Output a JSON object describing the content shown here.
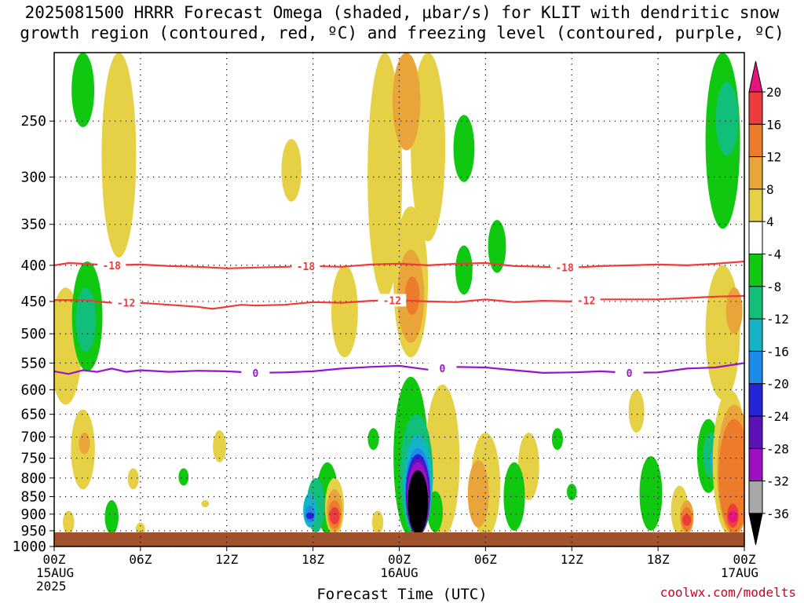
{
  "chart_data": {
    "type": "heatmap",
    "title_line1": "2025081500 HRRR Forecast Omega (shaded, μbar/s) for KLIT with dendritic snow",
    "title_line2": "growth region (contoured, red, ºC) and freezing level (contoured, purple, ºC)",
    "xlabel": "Forecast Time (UTC)",
    "watermark": "coolwx.com/modelts",
    "x_range_hours": [
      0,
      48
    ],
    "y_range_hpa": [
      200,
      1000
    ],
    "y_scale": "pressure",
    "grid": true,
    "y_ticks": [
      "250",
      "300",
      "350",
      "400",
      "450",
      "500",
      "550",
      "600",
      "650",
      "700",
      "750",
      "800",
      "850",
      "900",
      "950",
      "1000"
    ],
    "x_ticks": [
      {
        "hour": 0,
        "lines": [
          "00Z",
          "15AUG",
          "2025"
        ]
      },
      {
        "hour": 6,
        "lines": [
          "06Z"
        ]
      },
      {
        "hour": 12,
        "lines": [
          "12Z"
        ]
      },
      {
        "hour": 18,
        "lines": [
          "18Z"
        ]
      },
      {
        "hour": 24,
        "lines": [
          "00Z",
          "16AUG"
        ]
      },
      {
        "hour": 30,
        "lines": [
          "06Z"
        ]
      },
      {
        "hour": 36,
        "lines": [
          "12Z"
        ]
      },
      {
        "hour": 42,
        "lines": [
          "18Z"
        ]
      },
      {
        "hour": 48,
        "lines": [
          "00Z",
          "17AUG"
        ]
      }
    ],
    "colorbar": {
      "labels": [
        "20",
        "16",
        "12",
        "8",
        "4",
        "-4",
        "-8",
        "-12",
        "-16",
        "-20",
        "-24",
        "-28",
        "-32",
        "-36"
      ],
      "colors": [
        "#e4157d",
        "#ee3b3b",
        "#ec7c2b",
        "#e9a43a",
        "#e6d146",
        "#ffffff",
        "#10c810",
        "#12bf7a",
        "#14b4c6",
        "#1d8be9",
        "#2424d8",
        "#5b12b8",
        "#9b10c4",
        "#a8a8a8",
        "#000000"
      ]
    },
    "isotherms": [
      {
        "value": -18,
        "color": "#ee3b3b",
        "label": "-18",
        "points": [
          [
            0,
            400
          ],
          [
            1,
            397
          ],
          [
            2,
            398
          ],
          [
            4,
            400
          ],
          [
            6,
            399
          ],
          [
            8,
            401
          ],
          [
            10,
            402
          ],
          [
            12,
            404
          ],
          [
            14,
            403
          ],
          [
            16,
            402
          ],
          [
            18,
            401
          ],
          [
            20,
            402
          ],
          [
            22,
            399
          ],
          [
            24,
            398
          ],
          [
            26,
            400
          ],
          [
            28,
            398
          ],
          [
            30,
            397
          ],
          [
            32,
            401
          ],
          [
            34,
            402
          ],
          [
            36,
            403
          ],
          [
            38,
            401
          ],
          [
            40,
            400
          ],
          [
            42,
            399
          ],
          [
            44,
            400
          ],
          [
            46,
            398
          ],
          [
            48,
            395
          ]
        ],
        "label_hours": [
          4,
          17.5,
          35.5
        ]
      },
      {
        "value": -12,
        "color": "#ee3b3b",
        "label": "-12",
        "points": [
          [
            0,
            448
          ],
          [
            2,
            448
          ],
          [
            4,
            452
          ],
          [
            6,
            452
          ],
          [
            8,
            455
          ],
          [
            10,
            458
          ],
          [
            11,
            461
          ],
          [
            12,
            458
          ],
          [
            13,
            455
          ],
          [
            14,
            456
          ],
          [
            16,
            455
          ],
          [
            18,
            451
          ],
          [
            20,
            452
          ],
          [
            22,
            449
          ],
          [
            24,
            448
          ],
          [
            26,
            450
          ],
          [
            28,
            451
          ],
          [
            30,
            447
          ],
          [
            32,
            451
          ],
          [
            34,
            449
          ],
          [
            36,
            450
          ],
          [
            38,
            447
          ],
          [
            40,
            447
          ],
          [
            42,
            447
          ],
          [
            44,
            445
          ],
          [
            46,
            443
          ],
          [
            48,
            442
          ]
        ],
        "label_hours": [
          5,
          23.5,
          37
        ]
      },
      {
        "value": 0,
        "color": "#9b12c8",
        "label": "0",
        "points": [
          [
            0,
            565
          ],
          [
            1,
            570
          ],
          [
            2,
            563
          ],
          [
            3,
            566
          ],
          [
            4,
            560
          ],
          [
            5,
            566
          ],
          [
            6,
            563
          ],
          [
            8,
            566
          ],
          [
            10,
            564
          ],
          [
            12,
            565
          ],
          [
            14,
            568
          ],
          [
            16,
            567
          ],
          [
            18,
            565
          ],
          [
            20,
            560
          ],
          [
            22,
            557
          ],
          [
            24,
            555
          ],
          [
            26,
            562
          ],
          [
            28,
            557
          ],
          [
            30,
            558
          ],
          [
            32,
            563
          ],
          [
            34,
            568
          ],
          [
            36,
            567
          ],
          [
            38,
            565
          ],
          [
            40,
            568
          ],
          [
            42,
            567
          ],
          [
            44,
            560
          ],
          [
            46,
            558
          ],
          [
            48,
            550
          ]
        ],
        "label_hours": [
          14,
          27,
          40
        ]
      }
    ],
    "omega_regions": [
      {
        "level": 6,
        "hour": 2,
        "p_top": 200,
        "p_bot": 255
      },
      {
        "level": 4,
        "hour": 4.5,
        "p_top": 200,
        "p_bot": 390
      },
      {
        "level": 4,
        "hour": 16.5,
        "p_top": 265,
        "p_bot": 325
      },
      {
        "level": 4,
        "hour": 0.8,
        "p_top": 430,
        "p_bot": 630
      },
      {
        "level": 6,
        "hour": 2.3,
        "p_top": 395,
        "p_bot": 565
      },
      {
        "level": 7,
        "hour": 2.2,
        "p_top": 430,
        "p_bot": 530
      },
      {
        "level": 4,
        "hour": 2,
        "p_top": 640,
        "p_bot": 830
      },
      {
        "level": 3,
        "hour": 2.1,
        "p_top": 690,
        "p_bot": 740
      },
      {
        "level": 4,
        "hour": 1,
        "p_top": 890,
        "p_bot": 960
      },
      {
        "level": 6,
        "hour": 4,
        "p_top": 860,
        "p_bot": 960
      },
      {
        "level": 4,
        "hour": 5.5,
        "p_top": 775,
        "p_bot": 830
      },
      {
        "level": 4,
        "hour": 6,
        "p_top": 925,
        "p_bot": 965
      },
      {
        "level": 6,
        "hour": 9,
        "p_top": 775,
        "p_bot": 820
      },
      {
        "level": 4,
        "hour": 11.5,
        "p_top": 685,
        "p_bot": 760
      },
      {
        "level": 4,
        "hour": 20.2,
        "p_top": 400,
        "p_bot": 540
      },
      {
        "level": 4,
        "hour": 23,
        "p_top": 200,
        "p_bot": 445
      },
      {
        "level": 4,
        "hour": 26,
        "p_top": 200,
        "p_bot": 370
      },
      {
        "level": 4,
        "hour": 24.8,
        "p_top": 330,
        "p_bot": 540
      },
      {
        "level": 3,
        "hour": 24.8,
        "p_top": 380,
        "p_bot": 515
      },
      {
        "level": 2,
        "hour": 24.9,
        "p_top": 415,
        "p_bot": 470
      },
      {
        "level": 3,
        "hour": 24.5,
        "p_top": 200,
        "p_bot": 275
      },
      {
        "level": 6,
        "hour": 28.5,
        "p_top": 245,
        "p_bot": 305
      },
      {
        "level": 6,
        "hour": 30.8,
        "p_top": 345,
        "p_bot": 410
      },
      {
        "level": 6,
        "hour": 28.5,
        "p_top": 375,
        "p_bot": 440
      },
      {
        "level": 4,
        "hour": 27,
        "p_top": 590,
        "p_bot": 970
      },
      {
        "level": 4,
        "hour": 30,
        "p_top": 690,
        "p_bot": 970
      },
      {
        "level": 3,
        "hour": 29.5,
        "p_top": 755,
        "p_bot": 940
      },
      {
        "level": 4,
        "hour": 33,
        "p_top": 690,
        "p_bot": 860
      },
      {
        "level": 6,
        "hour": 32,
        "p_top": 760,
        "p_bot": 950
      },
      {
        "level": 6,
        "hour": 26.5,
        "p_top": 835,
        "p_bot": 955
      },
      {
        "level": 6,
        "hour": 35,
        "p_top": 680,
        "p_bot": 730
      },
      {
        "level": 6,
        "hour": 36,
        "p_top": 815,
        "p_bot": 860
      },
      {
        "level": 6,
        "hour": 22.2,
        "p_top": 680,
        "p_bot": 730
      },
      {
        "level": 4,
        "hour": 22.5,
        "p_top": 890,
        "p_bot": 960
      },
      {
        "level": 6,
        "hour": 19,
        "p_top": 760,
        "p_bot": 960
      },
      {
        "level": 7,
        "hour": 18.2,
        "p_top": 800,
        "p_bot": 955
      },
      {
        "level": 8,
        "hour": 17.8,
        "p_top": 840,
        "p_bot": 940
      },
      {
        "level": 9,
        "hour": 17.8,
        "p_top": 875,
        "p_bot": 925
      },
      {
        "level": 10,
        "hour": 17.8,
        "p_top": 895,
        "p_bot": 915
      },
      {
        "level": 4,
        "hour": 19.5,
        "p_top": 800,
        "p_bot": 965
      },
      {
        "level": 3,
        "hour": 19.5,
        "p_top": 830,
        "p_bot": 955
      },
      {
        "level": 2,
        "hour": 19.5,
        "p_top": 860,
        "p_bot": 945
      },
      {
        "level": 1,
        "hour": 19.5,
        "p_top": 880,
        "p_bot": 930
      },
      {
        "level": 6,
        "hour": 24.8,
        "p_top": 575,
        "p_bot": 970
      },
      {
        "level": 7,
        "hour": 25.2,
        "p_top": 650,
        "p_bot": 965
      },
      {
        "level": 8,
        "hour": 25.3,
        "p_top": 695,
        "p_bot": 965
      },
      {
        "level": 9,
        "hour": 25.3,
        "p_top": 725,
        "p_bot": 965
      },
      {
        "level": 10,
        "hour": 25.3,
        "p_top": 740,
        "p_bot": 965
      },
      {
        "level": 11,
        "hour": 25.3,
        "p_top": 750,
        "p_bot": 965
      },
      {
        "level": 12,
        "hour": 25.3,
        "p_top": 760,
        "p_bot": 965
      },
      {
        "level": 14,
        "hour": 25.3,
        "p_top": 780,
        "p_bot": 960
      },
      {
        "level": 4,
        "hour": 40.5,
        "p_top": 600,
        "p_bot": 690
      },
      {
        "level": 4,
        "hour": 43.5,
        "p_top": 820,
        "p_bot": 965
      },
      {
        "level": 3,
        "hour": 44,
        "p_top": 860,
        "p_bot": 960
      },
      {
        "level": 2,
        "hour": 44,
        "p_top": 880,
        "p_bot": 950
      },
      {
        "level": 1,
        "hour": 44,
        "p_top": 900,
        "p_bot": 935
      },
      {
        "level": 6,
        "hour": 41.5,
        "p_top": 745,
        "p_bot": 950
      },
      {
        "level": 6,
        "hour": 45.5,
        "p_top": 660,
        "p_bot": 840
      },
      {
        "level": 7,
        "hour": 45.7,
        "p_top": 690,
        "p_bot": 800
      },
      {
        "level": 8,
        "hour": 46,
        "p_top": 725,
        "p_bot": 785
      },
      {
        "level": 6,
        "hour": 46.5,
        "p_top": 200,
        "p_bot": 355
      },
      {
        "level": 7,
        "hour": 46.8,
        "p_top": 220,
        "p_bot": 280
      },
      {
        "level": 4,
        "hour": 46.5,
        "p_top": 400,
        "p_bot": 620
      },
      {
        "level": 3,
        "hour": 47.3,
        "p_top": 430,
        "p_bot": 500
      },
      {
        "level": 4,
        "hour": 47,
        "p_top": 600,
        "p_bot": 965
      },
      {
        "level": 3,
        "hour": 47.3,
        "p_top": 630,
        "p_bot": 965
      },
      {
        "level": 2,
        "hour": 47.3,
        "p_top": 660,
        "p_bot": 955
      },
      {
        "level": 1,
        "hour": 47.2,
        "p_top": 870,
        "p_bot": 940
      },
      {
        "level": 0,
        "hour": 47.2,
        "p_top": 890,
        "p_bot": 925
      },
      {
        "level": 4,
        "hour": 10.5,
        "p_top": 860,
        "p_bot": 880
      }
    ]
  }
}
